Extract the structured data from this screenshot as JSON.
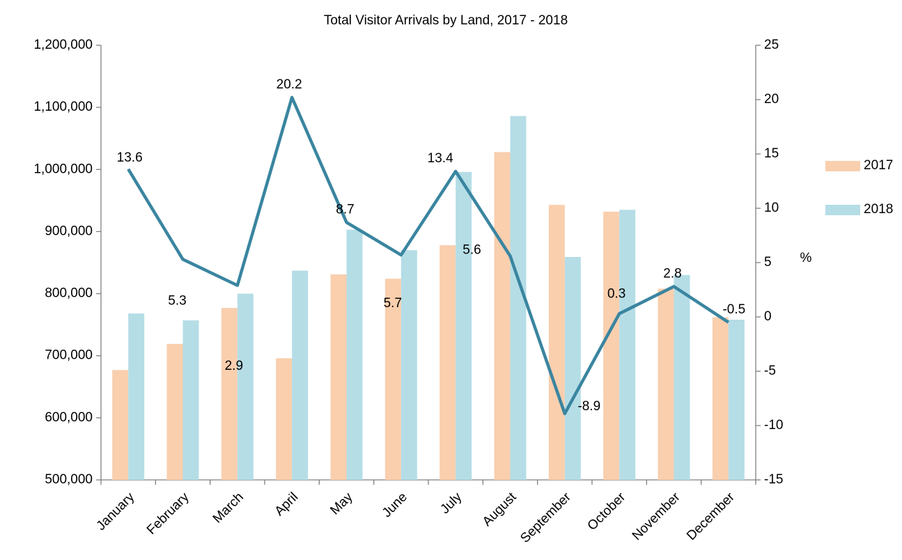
{
  "chart_data": {
    "type": "bar_line",
    "title": "Total Visitor Arrivals by Land, 2017 - 2018",
    "y2_label": "%",
    "categories": [
      "January",
      "February",
      "March",
      "April",
      "May",
      "June",
      "July",
      "August",
      "September",
      "October",
      "November",
      "December"
    ],
    "series": [
      {
        "name": "2017",
        "type": "bar",
        "color": "#f9cfae",
        "values": [
          677000,
          719000,
          777000,
          696000,
          831000,
          824000,
          878000,
          1028000,
          943000,
          932000,
          808000,
          762000
        ]
      },
      {
        "name": "2018",
        "type": "bar",
        "color": "#b5dde6",
        "values": [
          768000,
          757000,
          800000,
          837000,
          903000,
          870000,
          996000,
          1086000,
          859000,
          935000,
          830000,
          758000
        ]
      },
      {
        "type": "line",
        "axis": "y2",
        "color": "#3a85a0",
        "values": [
          13.6,
          5.3,
          2.9,
          20.2,
          8.7,
          5.7,
          13.4,
          5.6,
          -8.9,
          0.3,
          2.8,
          -0.5
        ]
      }
    ],
    "ylim": [
      500000,
      1200000
    ],
    "yticks": [
      {
        "value": 500000,
        "label": "500,000"
      },
      {
        "value": 600000,
        "label": "600,000"
      },
      {
        "value": 700000,
        "label": "700,000"
      },
      {
        "value": 800000,
        "label": "800,000"
      },
      {
        "value": 900000,
        "label": "900,000"
      },
      {
        "value": 1000000,
        "label": "1,000,000"
      },
      {
        "value": 1100000,
        "label": "1,100,000"
      },
      {
        "value": 1200000,
        "label": "1,200,000"
      }
    ],
    "y2lim": [
      -15,
      25
    ],
    "y2ticks": [
      -15,
      -10,
      -5,
      0,
      5,
      10,
      15,
      20,
      25
    ],
    "legend": "right"
  }
}
